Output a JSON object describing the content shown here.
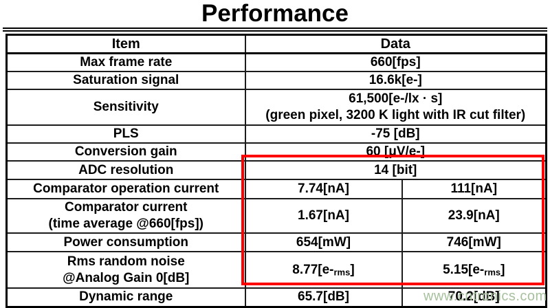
{
  "title": "Performance",
  "watermark": "www.cntronics.com",
  "colors": {
    "highlight_box": "#fe0000",
    "watermark": "#a7c09e",
    "border": "#000000",
    "text": "#000000",
    "background": "#ffffff"
  },
  "table": {
    "headers": {
      "item": "Item",
      "data": "Data"
    },
    "rows": [
      {
        "item_lines": [
          "Max frame rate"
        ],
        "cells": [
          {
            "text": "660[fps]",
            "span": 2
          }
        ]
      },
      {
        "item_lines": [
          "Saturation signal"
        ],
        "cells": [
          {
            "text": "16.6k[e-]",
            "span": 2
          }
        ]
      },
      {
        "item_lines": [
          "Sensitivity"
        ],
        "cells": [
          {
            "lines": [
              "61,500[e-/lx · s]",
              "(green pixel, 3200 K light with IR cut filter)"
            ],
            "span": 2
          }
        ]
      },
      {
        "item_lines": [
          "PLS"
        ],
        "cells": [
          {
            "text": "-75 [dB]",
            "span": 2
          }
        ]
      },
      {
        "item_lines": [
          "Conversion gain"
        ],
        "cells": [
          {
            "text": "60 [μV/e-]",
            "span": 2
          }
        ]
      },
      {
        "item_lines": [
          "ADC resolution"
        ],
        "cells": [
          {
            "text": "14 [bit]",
            "span": 2
          }
        ]
      },
      {
        "item_lines": [
          "Comparator operation current"
        ],
        "cells": [
          {
            "text": "7.74[nA]"
          },
          {
            "text": "111[nA]"
          }
        ]
      },
      {
        "item_lines": [
          "Comparator current",
          "(time average @660[fps])"
        ],
        "cells": [
          {
            "text": "1.67[nA]"
          },
          {
            "text": "23.9[nA]"
          }
        ]
      },
      {
        "item_lines": [
          "Power consumption"
        ],
        "cells": [
          {
            "text": "654[mW]"
          },
          {
            "text": "746[mW]"
          }
        ]
      },
      {
        "item_lines": [
          "Rms random noise",
          "@Analog Gain 0[dB]"
        ],
        "cells": [
          {
            "pre": "8.77[e-",
            "sub": "rms",
            "post": "]"
          },
          {
            "pre": "5.15[e-",
            "sub": "rms",
            "post": "]"
          }
        ]
      },
      {
        "item_lines": [
          "Dynamic range"
        ],
        "cells": [
          {
            "text": "65.7[dB]"
          },
          {
            "text": "70.2[dB]"
          }
        ]
      }
    ]
  }
}
